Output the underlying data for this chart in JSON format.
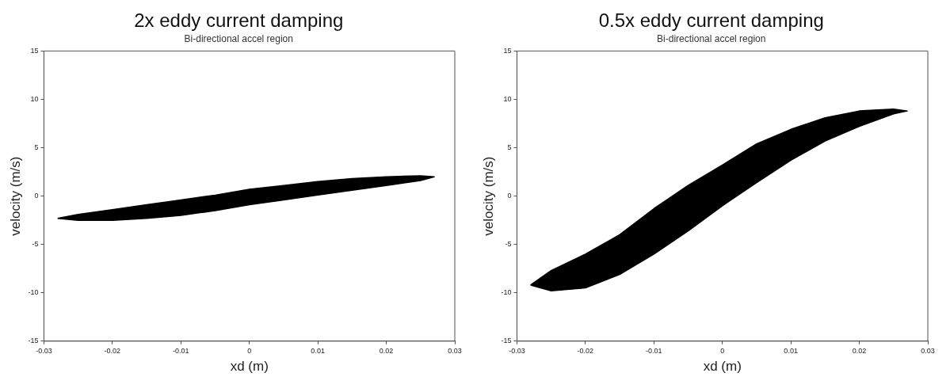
{
  "chart_data": [
    {
      "type": "area",
      "title": "2x eddy current damping",
      "subtitle": "Bi-directional accel region",
      "xlabel": "xd (m)",
      "ylabel": "velocity (m/s)",
      "series": [
        {
          "color": "#000000",
          "x": [
            -0.028,
            -0.025,
            -0.02,
            -0.015,
            -0.01,
            -0.005,
            0,
            0.005,
            0.01,
            0.015,
            0.02,
            0.025,
            0.027,
            0.025,
            0.02,
            0.015,
            0.01,
            0.005,
            0,
            -0.005,
            -0.01,
            -0.015,
            -0.02,
            -0.025,
            -0.028
          ],
          "values": [
            -2.3,
            -1.9,
            -1.4,
            -0.9,
            -0.4,
            0.1,
            0.7,
            1.1,
            1.5,
            1.8,
            2.0,
            2.1,
            2.0,
            1.6,
            1.1,
            0.6,
            0.1,
            -0.4,
            -0.9,
            -1.5,
            -2.0,
            -2.3,
            -2.5,
            -2.5,
            -2.3
          ]
        }
      ],
      "xlim": [
        -0.03,
        0.03
      ],
      "ylim": [
        -15,
        15
      ],
      "xticks": [
        -0.03,
        -0.02,
        -0.01,
        0,
        0.01,
        0.02,
        0.03
      ],
      "yticks": [
        -15,
        -10,
        -5,
        0,
        5,
        10,
        15
      ],
      "grid": false
    },
    {
      "type": "area",
      "title": "0.5x eddy current damping",
      "subtitle": "Bi-directional accel region",
      "xlabel": "xd (m)",
      "ylabel": "velocity (m/s)",
      "series": [
        {
          "color": "#000000",
          "x": [
            -0.028,
            -0.025,
            -0.02,
            -0.015,
            -0.01,
            -0.005,
            0,
            0.005,
            0.01,
            0.015,
            0.02,
            0.025,
            0.027,
            0.025,
            0.02,
            0.015,
            0.01,
            0.005,
            0,
            -0.005,
            -0.01,
            -0.015,
            -0.02,
            -0.025,
            -0.028
          ],
          "values": [
            -9.2,
            -7.7,
            -6.0,
            -4.0,
            -1.3,
            1.1,
            3.2,
            5.4,
            6.9,
            8.1,
            8.8,
            9.0,
            8.8,
            8.5,
            7.2,
            5.7,
            3.7,
            1.4,
            -1.0,
            -3.6,
            -6.0,
            -8.1,
            -9.5,
            -9.8,
            -9.2
          ]
        }
      ],
      "xlim": [
        -0.03,
        0.03
      ],
      "ylim": [
        -15,
        15
      ],
      "xticks": [
        -0.03,
        -0.02,
        -0.01,
        0,
        0.01,
        0.02,
        0.03
      ],
      "yticks": [
        -15,
        -10,
        -5,
        0,
        5,
        10,
        15
      ],
      "grid": false
    }
  ]
}
